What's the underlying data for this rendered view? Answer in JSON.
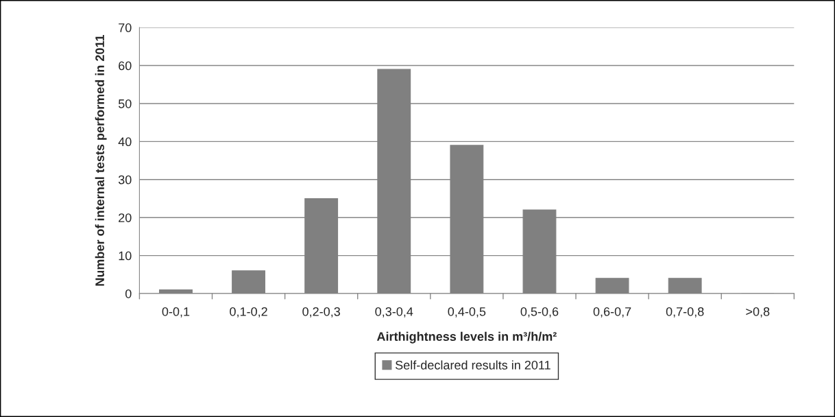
{
  "chart_data": {
    "type": "bar",
    "xlabel": "Airthightness levels in m³/h/m²",
    "ylabel": "Number of internal tests performed in 2011",
    "categories": [
      "0-0,1",
      "0,1-0,2",
      "0,2-0,3",
      "0,3-0,4",
      "0,4-0,5",
      "0,5-0,6",
      "0,6-0,7",
      "0,7-0,8",
      ">0,8"
    ],
    "series": [
      {
        "name": "Self-declared results in 2011",
        "color": "#808080",
        "values": [
          1,
          6,
          25,
          59,
          39,
          22,
          4,
          4,
          0
        ]
      }
    ],
    "ylim": [
      0,
      70
    ],
    "yticks": [
      0,
      10,
      20,
      30,
      40,
      50,
      60,
      70
    ],
    "grid": "y",
    "legend": "bottom"
  }
}
